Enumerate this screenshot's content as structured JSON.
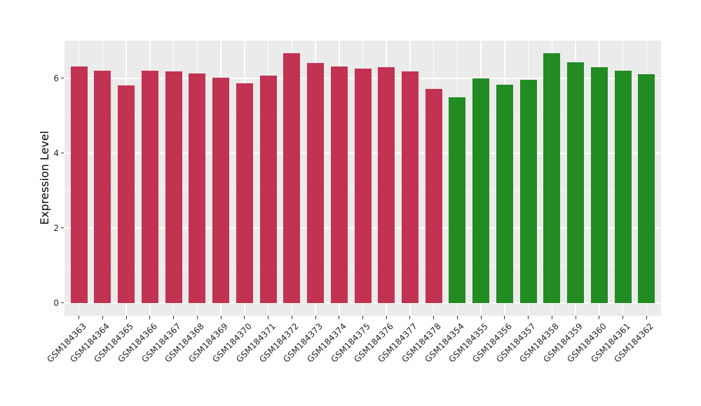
{
  "figure": {
    "background": "#ffffff"
  },
  "chart_data": {
    "type": "bar",
    "title": "",
    "xlabel": "",
    "ylabel": "Expression Level",
    "ylim": [
      -0.34,
      7.0
    ],
    "yticks": [
      0,
      2,
      4,
      6
    ],
    "yticks_minor": [
      1,
      3,
      5
    ],
    "grid": true,
    "legend": "none",
    "panel_bg": "#ebebeb",
    "grid_major_color": "#ffffff",
    "grid_minor_color": "#f5f5f5",
    "tick_color": "#333333",
    "label_color": "#262626",
    "categories": [
      "GSM184363",
      "GSM184364",
      "GSM184365",
      "GSM184366",
      "GSM184367",
      "GSM184368",
      "GSM184369",
      "GSM184370",
      "GSM184371",
      "GSM184372",
      "GSM184373",
      "GSM184374",
      "GSM184375",
      "GSM184376",
      "GSM184377",
      "GSM184378",
      "GSM184354",
      "GSM184355",
      "GSM184356",
      "GSM184357",
      "GSM184358",
      "GSM184359",
      "GSM184360",
      "GSM184361",
      "GSM184362"
    ],
    "values": [
      6.31,
      6.19,
      5.81,
      6.2,
      6.18,
      6.12,
      6.01,
      5.87,
      6.06,
      6.67,
      6.41,
      6.31,
      6.26,
      6.29,
      6.17,
      5.72,
      5.49,
      5.99,
      5.82,
      5.96,
      6.66,
      6.43,
      6.29,
      6.19,
      6.1
    ],
    "groups": [
      "group1",
      "group1",
      "group1",
      "group1",
      "group1",
      "group1",
      "group1",
      "group1",
      "group1",
      "group1",
      "group1",
      "group1",
      "group1",
      "group1",
      "group1",
      "group1",
      "group2",
      "group2",
      "group2",
      "group2",
      "group2",
      "group2",
      "group2",
      "group2",
      "group2"
    ],
    "group_colors": {
      "group1": "#c23351",
      "group2": "#228b22"
    }
  }
}
